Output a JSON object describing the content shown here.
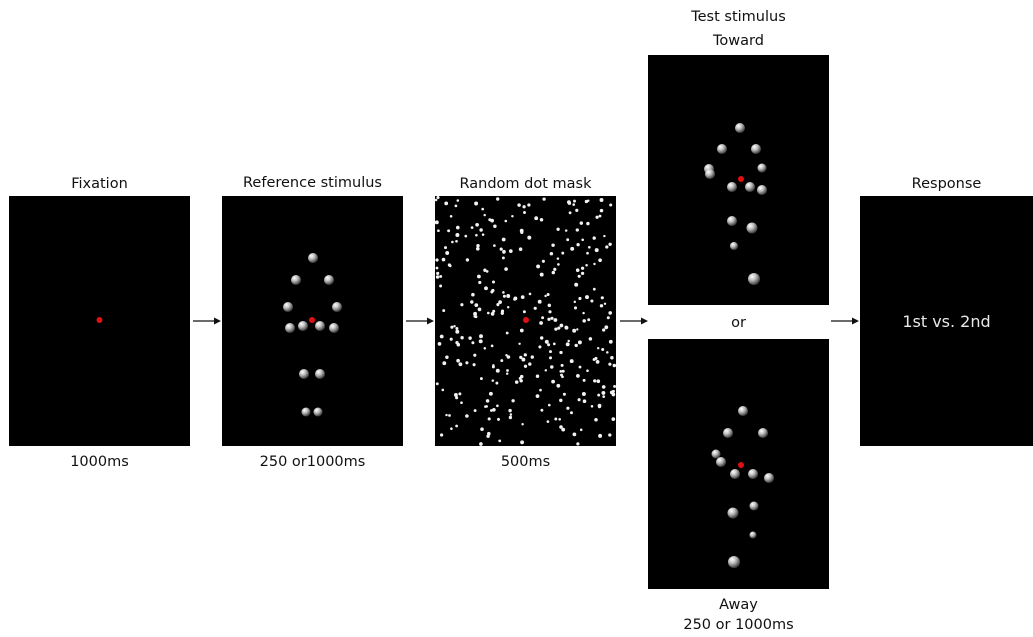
{
  "stages": {
    "fixation": {
      "title": "Fixation",
      "duration": "1000ms"
    },
    "reference": {
      "title": "Reference stimulus",
      "duration": "250 or1000ms"
    },
    "mask": {
      "title": "Random dot mask",
      "duration": "500ms"
    },
    "test": {
      "title": "Test stimulus",
      "toward_label": "Toward",
      "or_label": "or",
      "away_label": "Away",
      "duration": "250 or 1000ms"
    },
    "response": {
      "title": "Response",
      "text": "1st vs. 2nd"
    }
  },
  "colors": {
    "panel": "#000000",
    "fixation_dot": "#e01010",
    "sphere": "#d8d8d8",
    "mask_dot": "#f2f2f2"
  }
}
